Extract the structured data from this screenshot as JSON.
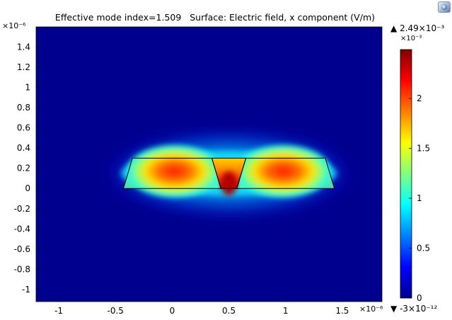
{
  "app": {
    "logo_icon": "comsol-logo-icon"
  },
  "header": {
    "title_left": "Effective mode index=1.509",
    "title_right": "Surface: Electric field, x component (V/m)"
  },
  "chart_data": {
    "type": "heatmap",
    "title": "Effective mode index=1.509   Surface: Electric field, x component (V/m)",
    "xlim": [
      -1.2,
      1.85
    ],
    "ylim": [
      -1.12,
      1.6
    ],
    "x_scale_label": "×10⁻⁶",
    "y_scale_label": "×10⁻⁶",
    "x_ticks": [
      "-1",
      "-0.5",
      "0",
      "0.5",
      "1",
      "1.5"
    ],
    "x_tick_values": [
      -1,
      -0.5,
      0,
      0.5,
      1,
      1.5
    ],
    "y_ticks": [
      "1.4",
      "1.2",
      "1",
      "0.8",
      "0.6",
      "0.4",
      "0.2",
      "0",
      "-0.2",
      "-0.4",
      "-0.6",
      "-0.8",
      "-1"
    ],
    "y_tick_values": [
      1.4,
      1.2,
      1,
      0.8,
      0.6,
      0.4,
      0.2,
      0,
      -0.2,
      -0.4,
      -0.6,
      -0.8,
      -1
    ],
    "colorbar": {
      "max_label": "2.49×10⁻³",
      "scale_label": "×10⁻³",
      "min_label": "-3×10⁻¹²",
      "max_value": 0.00249,
      "min_value": -3e-12,
      "ticks": [
        "2",
        "1.5",
        "1",
        "0.5",
        "0"
      ],
      "tick_values": [
        2,
        1.5,
        1,
        0.5,
        0
      ],
      "range": [
        0,
        2.49
      ],
      "colormap": [
        "#00008f",
        "#0000ff",
        "#0080ff",
        "#00ffff",
        "#80ff80",
        "#ffff00",
        "#ff8000",
        "#ff0000",
        "#800000"
      ]
    },
    "features": [
      {
        "name": "left waveguide",
        "polygon": [
          [
            -0.43,
            0
          ],
          [
            -0.35,
            0.3
          ],
          [
            0.35,
            0.3
          ],
          [
            0.43,
            0
          ]
        ],
        "peak": [
          0.02,
          0.17
        ]
      },
      {
        "name": "slot",
        "polygon": [
          [
            0.35,
            0.3
          ],
          [
            0.43,
            0
          ],
          [
            0.57,
            0
          ],
          [
            0.65,
            0.3
          ]
        ],
        "peak": [
          0.5,
          0.05
        ]
      },
      {
        "name": "right waveguide",
        "polygon": [
          [
            0.57,
            0
          ],
          [
            0.65,
            0.3
          ],
          [
            1.35,
            0.3
          ],
          [
            1.43,
            0
          ]
        ],
        "peak": [
          0.98,
          0.17
        ]
      }
    ]
  }
}
